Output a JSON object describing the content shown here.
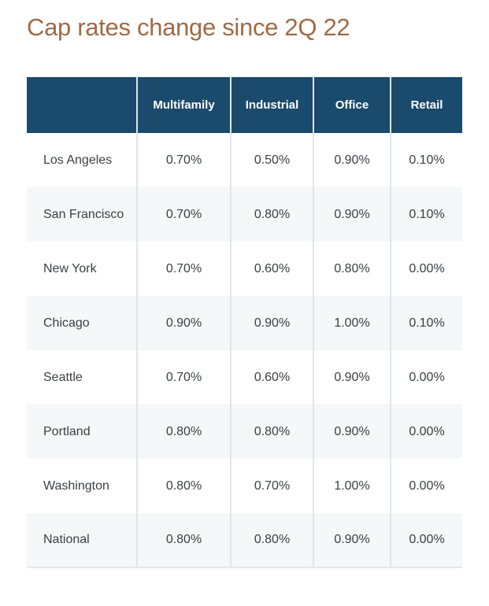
{
  "page": {
    "title": "Cap rates change since 2Q 22"
  },
  "colors": {
    "title_color": "#a06a45",
    "header_bg": "#1a4a6c",
    "header_text": "#ffffff",
    "cell_text": "#3a4046",
    "stripe_bg": "#f5f7f8",
    "divider": "#e1e5e8",
    "bottom_border": "#e6e9ec"
  },
  "table": {
    "columns": [
      "",
      "Multifamily",
      "Industrial",
      "Office",
      "Retail"
    ],
    "rows": [
      {
        "label": "Los Angeles",
        "values": [
          "0.70%",
          "0.50%",
          "0.90%",
          "0.10%"
        ]
      },
      {
        "label": "San Francisco",
        "values": [
          "0.70%",
          "0.80%",
          "0.90%",
          "0.10%"
        ]
      },
      {
        "label": "New York",
        "values": [
          "0.70%",
          "0.60%",
          "0.80%",
          "0.00%"
        ]
      },
      {
        "label": "Chicago",
        "values": [
          "0.90%",
          "0.90%",
          "1.00%",
          "0.10%"
        ]
      },
      {
        "label": "Seattle",
        "values": [
          "0.70%",
          "0.60%",
          "0.90%",
          "0.00%"
        ]
      },
      {
        "label": "Portland",
        "values": [
          "0.80%",
          "0.80%",
          "0.90%",
          "0.00%"
        ]
      },
      {
        "label": "Washington",
        "values": [
          "0.80%",
          "0.70%",
          "1.00%",
          "0.00%"
        ]
      },
      {
        "label": "National",
        "values": [
          "0.80%",
          "0.80%",
          "0.90%",
          "0.00%"
        ]
      }
    ]
  },
  "chart_data": {
    "type": "table",
    "title": "Cap rates change since 2Q 22",
    "unit": "%",
    "columns": [
      "Multifamily",
      "Industrial",
      "Office",
      "Retail"
    ],
    "rows": [
      {
        "label": "Los Angeles",
        "values": [
          0.7,
          0.5,
          0.9,
          0.1
        ]
      },
      {
        "label": "San Francisco",
        "values": [
          0.7,
          0.8,
          0.9,
          0.1
        ]
      },
      {
        "label": "New York",
        "values": [
          0.7,
          0.6,
          0.8,
          0.0
        ]
      },
      {
        "label": "Chicago",
        "values": [
          0.9,
          0.9,
          1.0,
          0.1
        ]
      },
      {
        "label": "Seattle",
        "values": [
          0.7,
          0.6,
          0.9,
          0.0
        ]
      },
      {
        "label": "Portland",
        "values": [
          0.8,
          0.8,
          0.9,
          0.0
        ]
      },
      {
        "label": "Washington",
        "values": [
          0.8,
          0.7,
          1.0,
          0.0
        ]
      },
      {
        "label": "National",
        "values": [
          0.8,
          0.8,
          0.9,
          0.0
        ]
      }
    ]
  }
}
